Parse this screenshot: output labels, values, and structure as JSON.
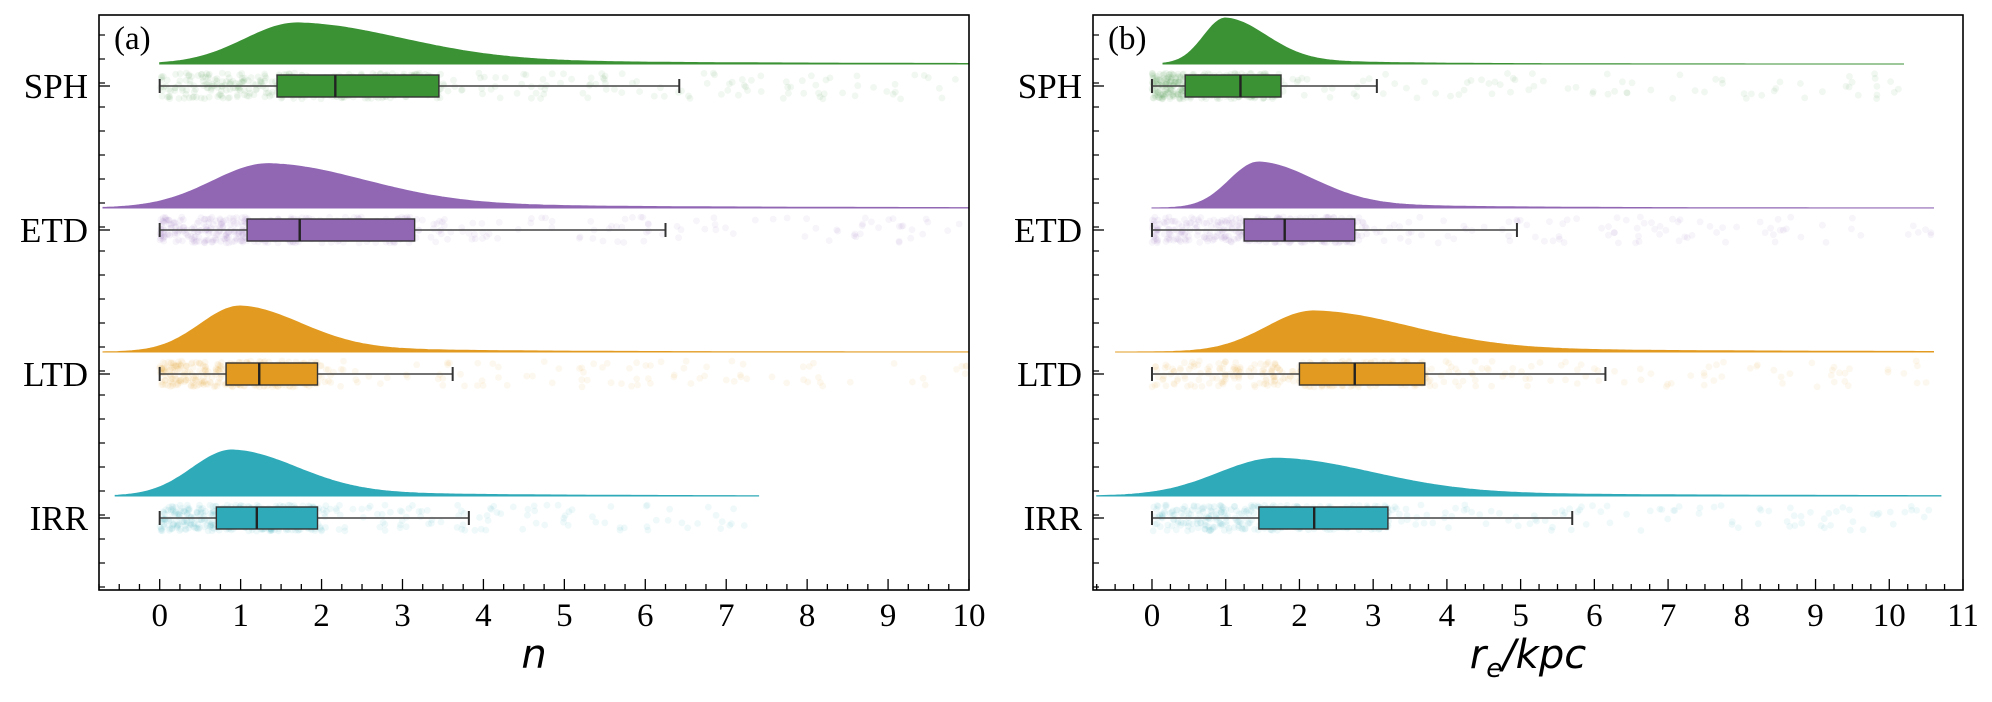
{
  "chart_data": [
    {
      "type": "raincloud",
      "panel_label": "(a)",
      "xlabel": "n",
      "xlim": [
        -0.75,
        10.0
      ],
      "xticks": [
        0,
        1,
        2,
        3,
        4,
        5,
        6,
        7,
        8,
        9,
        10
      ],
      "tick_labels": [
        "0",
        "1",
        "2",
        "3",
        "4",
        "5",
        "6",
        "7",
        "8",
        "9",
        "10"
      ],
      "categories": [
        "SPH",
        "ETD",
        "LTD",
        "IRR"
      ],
      "colors": [
        "#3a9234",
        "#9167b4",
        "#e29b20",
        "#2eaab8"
      ],
      "series": [
        {
          "name": "SPH",
          "box": {
            "whisker_low": 0.0,
            "q1": 1.45,
            "median": 2.17,
            "q3": 3.45,
            "whisker_high": 6.42
          },
          "density": {
            "peak": 1.7,
            "sigma_left": 0.65,
            "sigma_right": 1.3,
            "start": 0.0,
            "end": 10.0,
            "height": 0.9
          }
        },
        {
          "name": "ETD",
          "box": {
            "whisker_low": 0.0,
            "q1": 1.08,
            "median": 1.73,
            "q3": 3.15,
            "whisker_high": 6.25
          },
          "density": {
            "peak": 1.35,
            "sigma_left": 0.7,
            "sigma_right": 1.2,
            "start": -0.7,
            "end": 10.0,
            "height": 1.0
          }
        },
        {
          "name": "LTD",
          "box": {
            "whisker_low": 0.0,
            "q1": 0.82,
            "median": 1.23,
            "q3": 1.95,
            "whisker_high": 3.62
          },
          "density": {
            "peak": 1.0,
            "sigma_left": 0.5,
            "sigma_right": 0.75,
            "start": -0.7,
            "end": 10.0,
            "height": 1.4
          }
        },
        {
          "name": "IRR",
          "box": {
            "whisker_low": 0.0,
            "q1": 0.7,
            "median": 1.2,
            "q3": 1.95,
            "whisker_high": 3.82
          },
          "density": {
            "peak": 0.9,
            "sigma_left": 0.5,
            "sigma_right": 0.8,
            "start": -0.55,
            "end": 7.4,
            "height": 1.3
          }
        }
      ]
    },
    {
      "type": "raincloud",
      "panel_label": "(b)",
      "xlabel": "r",
      "xlabel_sub": "e",
      "xlabel_rest": "/kpc",
      "xlim": [
        -0.8,
        11.0
      ],
      "xticks": [
        0,
        1,
        2,
        3,
        4,
        5,
        6,
        7,
        8,
        9,
        10,
        11
      ],
      "tick_labels": [
        "0",
        "1",
        "2",
        "3",
        "4",
        "5",
        "6",
        "7",
        "8",
        "9",
        "10",
        "11"
      ],
      "categories": [
        "SPH",
        "ETD",
        "LTD",
        "IRR"
      ],
      "colors": [
        "#3a9234",
        "#9167b4",
        "#e29b20",
        "#2eaab8"
      ],
      "series": [
        {
          "name": "SPH",
          "box": {
            "whisker_low": 0.0,
            "q1": 0.45,
            "median": 1.2,
            "q3": 1.75,
            "whisker_high": 3.05
          },
          "density": {
            "peak": 1.0,
            "sigma_left": 0.3,
            "sigma_right": 0.55,
            "start": 0.15,
            "end": 10.2,
            "height": 2.1
          }
        },
        {
          "name": "ETD",
          "box": {
            "whisker_low": 0.0,
            "q1": 1.25,
            "median": 1.8,
            "q3": 2.75,
            "whisker_high": 4.95
          },
          "density": {
            "peak": 1.45,
            "sigma_left": 0.4,
            "sigma_right": 0.75,
            "start": 0.0,
            "end": 10.6,
            "height": 1.2
          }
        },
        {
          "name": "LTD",
          "box": {
            "whisker_low": 0.0,
            "q1": 2.0,
            "median": 2.75,
            "q3": 3.7,
            "whisker_high": 6.15
          },
          "density": {
            "peak": 2.2,
            "sigma_left": 0.65,
            "sigma_right": 1.3,
            "start": -0.5,
            "end": 10.6,
            "height": 0.9
          }
        },
        {
          "name": "IRR",
          "box": {
            "whisker_low": 0.0,
            "q1": 1.45,
            "median": 2.2,
            "q3": 3.2,
            "whisker_high": 5.7
          },
          "density": {
            "peak": 1.7,
            "sigma_left": 0.8,
            "sigma_right": 1.3,
            "start": -0.75,
            "end": 10.7,
            "height": 0.8
          }
        }
      ]
    }
  ]
}
